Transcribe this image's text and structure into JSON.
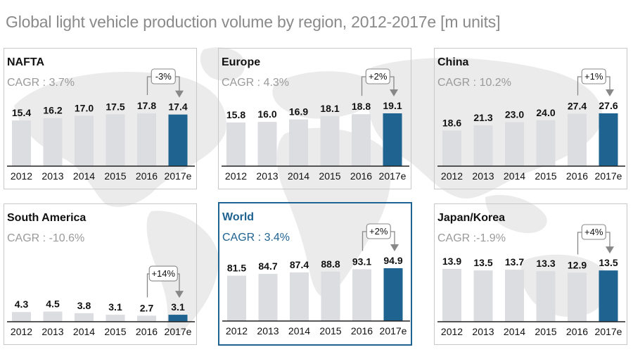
{
  "title": "Global light vehicle production volume  by region, 2012-2017e [m units]",
  "colors": {
    "bar_grey": "#dcdde0",
    "bar_highlight": "#1f6391",
    "map": "#e8e8e8",
    "axis": "#222222",
    "arrow": "#888888"
  },
  "chart_data": [
    {
      "type": "bar",
      "title": "NAFTA",
      "cagr_label": "CAGR",
      "cagr_value": ": 3.7%",
      "categories": [
        "2012",
        "2013",
        "2014",
        "2015",
        "2016",
        "2017e"
      ],
      "values": [
        15.4,
        16.2,
        17.0,
        17.5,
        17.8,
        17.4
      ],
      "value_labels": [
        "15.4",
        "16.2",
        "17.0",
        "17.5",
        "17.8",
        "17.4"
      ],
      "growth_label": "-3%",
      "highlight_index": 5
    },
    {
      "type": "bar",
      "title": "Europe",
      "cagr_label": "CAGR",
      "cagr_value": ": 4.3%",
      "categories": [
        "2012",
        "2013",
        "2014",
        "2015",
        "2016",
        "2017e"
      ],
      "values": [
        15.8,
        16.0,
        16.9,
        18.1,
        18.8,
        19.1
      ],
      "value_labels": [
        "15.8",
        "16.0",
        "16.9",
        "18.1",
        "18.8",
        "19.1"
      ],
      "growth_label": "+2%",
      "highlight_index": 5
    },
    {
      "type": "bar",
      "title": "China",
      "cagr_label": "CAGR",
      "cagr_value": ": 10.2%",
      "categories": [
        "2012",
        "2013",
        "2014",
        "2015",
        "2016",
        "2017e"
      ],
      "values": [
        18.6,
        21.3,
        23.0,
        24.0,
        27.4,
        27.6
      ],
      "value_labels": [
        "18.6",
        "21.3",
        "23.0",
        "24.0",
        "27.4",
        "27.6"
      ],
      "growth_label": "+1%",
      "highlight_index": 5
    },
    {
      "type": "bar",
      "title": "South America",
      "cagr_label": "CAGR",
      "cagr_value": ": -10.6%",
      "categories": [
        "2012",
        "2013",
        "2014",
        "2015",
        "2016",
        "2017e"
      ],
      "values": [
        4.3,
        4.5,
        3.8,
        3.1,
        2.7,
        3.1
      ],
      "value_labels": [
        "4.3",
        "4.5",
        "3.8",
        "3.1",
        "2.7",
        "3.1"
      ],
      "growth_label": "+14%",
      "highlight_index": 5
    },
    {
      "type": "bar",
      "title": "World",
      "cagr_label": "CAGR",
      "cagr_value": ": 3.4%",
      "categories": [
        "2012",
        "2013",
        "2014",
        "2015",
        "2016",
        "2017e"
      ],
      "values": [
        81.5,
        84.7,
        87.4,
        88.8,
        93.1,
        94.9
      ],
      "value_labels": [
        "81.5",
        "84.7",
        "87.4",
        "88.8",
        "93.1",
        "94.9"
      ],
      "growth_label": "+2%",
      "highlight_index": 5
    },
    {
      "type": "bar",
      "title": "Japan/Korea",
      "cagr_label": "CAGR",
      "cagr_value": ":-1.9%",
      "categories": [
        "2012",
        "2013",
        "2014",
        "2015",
        "2016",
        "2017e"
      ],
      "values": [
        13.9,
        13.5,
        13.7,
        13.3,
        12.9,
        13.5
      ],
      "value_labels": [
        "13.9",
        "13.5",
        "13.7",
        "13.3",
        "12.9",
        "13.5"
      ],
      "growth_label": "+4%",
      "highlight_index": 5
    }
  ]
}
